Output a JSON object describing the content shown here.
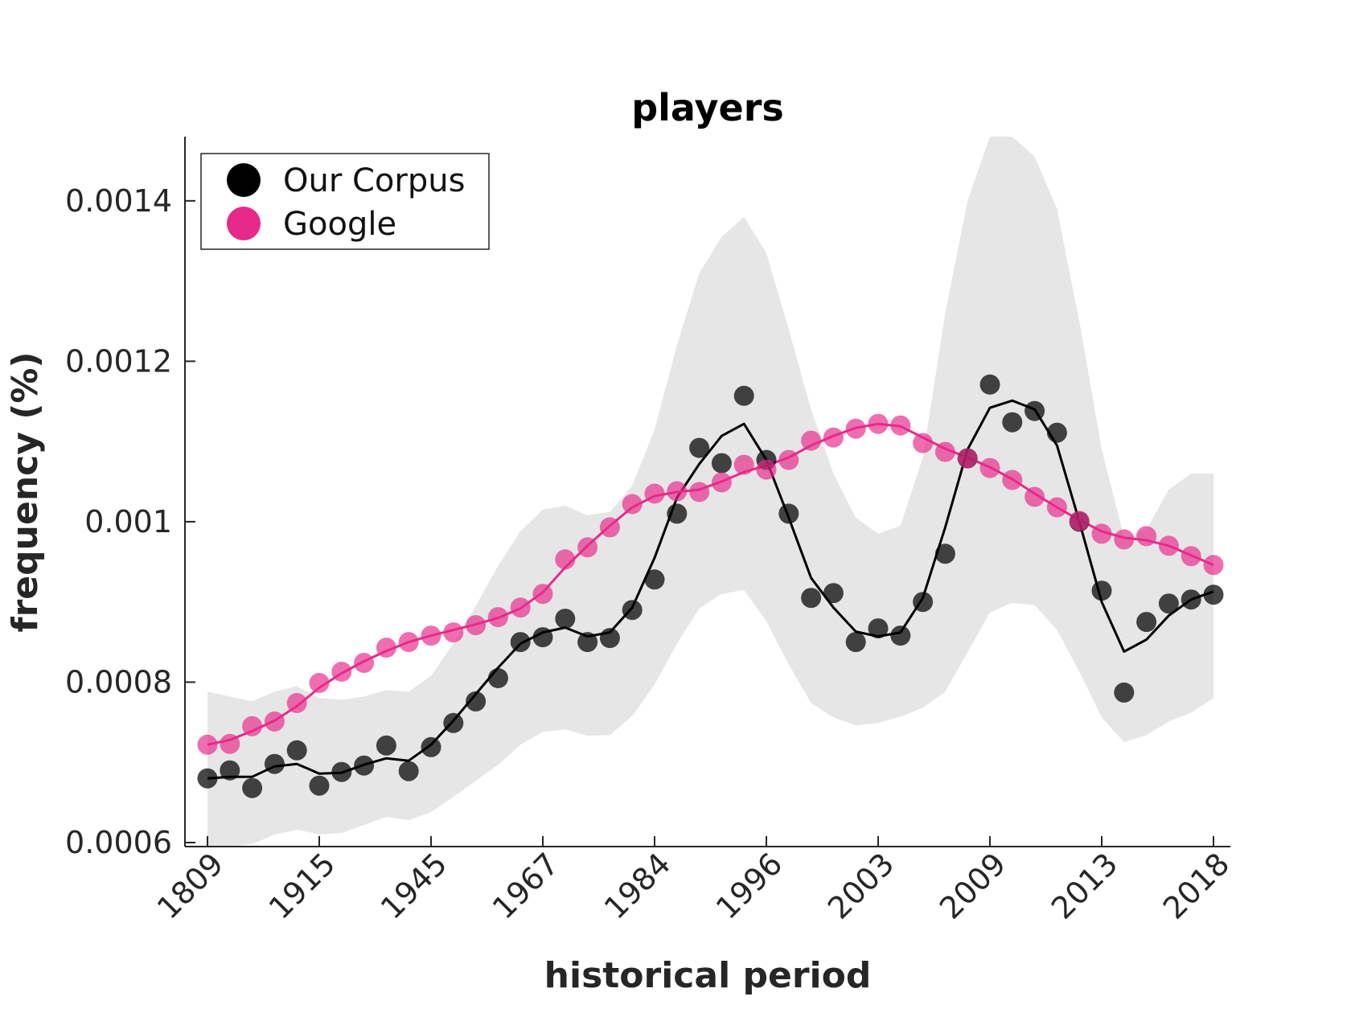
{
  "chart_data": {
    "type": "scatter",
    "title": "players",
    "xlabel": "historical period",
    "ylabel": "frequency (%)",
    "ylim": [
      0.000595,
      0.00148
    ],
    "yticks": [
      0.0006,
      0.0008,
      0.001,
      0.0012,
      0.0014
    ],
    "ytick_labels": [
      "0.0006",
      "0.0008",
      "0.001",
      "0.0012",
      "0.0014"
    ],
    "x_tick_labels": [
      "1809",
      "1915",
      "1945",
      "1967",
      "1984",
      "1996",
      "2003",
      "2009",
      "2013",
      "2018"
    ],
    "x_tick_positions": [
      1,
      6,
      11,
      16,
      21,
      26,
      31,
      36,
      41,
      46
    ],
    "xlim": [
      0,
      47
    ],
    "grid": false,
    "legend": {
      "placement": "top-left",
      "entries": [
        {
          "label": "Our Corpus",
          "color": "#000000"
        },
        {
          "label": "Google",
          "color": "#e7298a"
        }
      ]
    },
    "band": {
      "color": "#e6e6e6",
      "upper": [
        0.000788,
        0.000782,
        0.000776,
        0.000788,
        0.000795,
        0.00078,
        0.000778,
        0.000782,
        0.00079,
        0.000788,
        0.000808,
        0.000848,
        0.000895,
        0.000945,
        0.000988,
        0.001015,
        0.00102,
        0.001008,
        0.001012,
        0.001045,
        0.001115,
        0.00122,
        0.00131,
        0.001355,
        0.00138,
        0.001335,
        0.00124,
        0.00114,
        0.00106,
        0.001005,
        0.000985,
        0.000995,
        0.00108,
        0.00126,
        0.0014,
        0.00148,
        0.00148,
        0.001455,
        0.00139,
        0.00125,
        0.00109,
        0.00098,
        0.00099,
        0.00104,
        0.00106,
        0.00106
      ],
      "lower": [
        0.000595,
        0.000595,
        0.000598,
        0.00061,
        0.000616,
        0.00061,
        0.000612,
        0.000622,
        0.000632,
        0.000628,
        0.000638,
        0.000657,
        0.000677,
        0.000697,
        0.000722,
        0.000738,
        0.000741,
        0.000733,
        0.000734,
        0.000758,
        0.000797,
        0.000848,
        0.000892,
        0.00091,
        0.000915,
        0.000876,
        0.000822,
        0.000774,
        0.000756,
        0.000746,
        0.000749,
        0.000757,
        0.000768,
        0.000788,
        0.000837,
        0.000887,
        0.000899,
        0.000896,
        0.000865,
        0.000813,
        0.000756,
        0.000725,
        0.000734,
        0.000751,
        0.000762,
        0.00078
      ]
    },
    "series": [
      {
        "name": "Our Corpus",
        "color": "#000000",
        "points": [
          0.00068,
          0.00069,
          0.000668,
          0.000698,
          0.000715,
          0.000671,
          0.000688,
          0.000696,
          0.000721,
          0.000689,
          0.000719,
          0.000749,
          0.000776,
          0.000805,
          0.00085,
          0.000856,
          0.000879,
          0.00085,
          0.000855,
          0.00089,
          0.000928,
          0.00101,
          0.001092,
          0.001073,
          0.001157,
          0.001077,
          0.00101,
          0.000905,
          0.000911,
          0.00085,
          0.000867,
          0.000858,
          0.0009,
          0.00096,
          0.001079,
          0.001171,
          0.001124,
          0.001138,
          0.001111,
          0.001,
          0.000914,
          0.000787,
          0.000875,
          0.000898,
          0.000903,
          0.000909
        ],
        "line": [
          0.00068,
          0.000682,
          0.000682,
          0.000695,
          0.000698,
          0.000686,
          0.000687,
          0.000697,
          0.000705,
          0.000702,
          0.000722,
          0.000752,
          0.000785,
          0.000818,
          0.000848,
          0.000862,
          0.000868,
          0.000857,
          0.000862,
          0.000893,
          0.000955,
          0.00103,
          0.001072,
          0.001107,
          0.001122,
          0.001077,
          0.001005,
          0.00093,
          0.000893,
          0.000863,
          0.000857,
          0.000862,
          0.000905,
          0.000993,
          0.00109,
          0.001142,
          0.001151,
          0.00114,
          0.001095,
          0.001,
          0.0009,
          0.000838,
          0.000853,
          0.000883,
          0.000903,
          0.000913
        ]
      },
      {
        "name": "Google",
        "color": "#e7298a",
        "points": [
          0.000722,
          0.000723,
          0.000745,
          0.000751,
          0.000774,
          0.000799,
          0.000813,
          0.000824,
          0.000843,
          0.00085,
          0.000858,
          0.000862,
          0.000871,
          0.000881,
          0.000893,
          0.00091,
          0.000953,
          0.000968,
          0.000993,
          0.001022,
          0.001035,
          0.001038,
          0.001037,
          0.001049,
          0.001071,
          0.001065,
          0.001077,
          0.001101,
          0.001105,
          0.001116,
          0.001122,
          0.00112,
          0.001098,
          0.001087,
          0.001079,
          0.001067,
          0.001052,
          0.001031,
          0.001018,
          0.001001,
          0.000985,
          0.000978,
          0.000982,
          0.00097,
          0.000957,
          0.000946
        ],
        "line": [
          0.000722,
          0.000728,
          0.000739,
          0.000752,
          0.00077,
          0.000793,
          0.000811,
          0.000826,
          0.000839,
          0.00085,
          0.000858,
          0.000865,
          0.000872,
          0.00088,
          0.000892,
          0.000912,
          0.000943,
          0.00097,
          0.000995,
          0.001018,
          0.001032,
          0.001037,
          0.00104,
          0.00105,
          0.001062,
          0.00107,
          0.00108,
          0.001095,
          0.001107,
          0.001117,
          0.001122,
          0.001119,
          0.001105,
          0.001091,
          0.00108,
          0.001068,
          0.001053,
          0.001035,
          0.001018,
          0.001002,
          0.000988,
          0.00098,
          0.000977,
          0.00097,
          0.000958,
          0.000946
        ]
      }
    ]
  }
}
